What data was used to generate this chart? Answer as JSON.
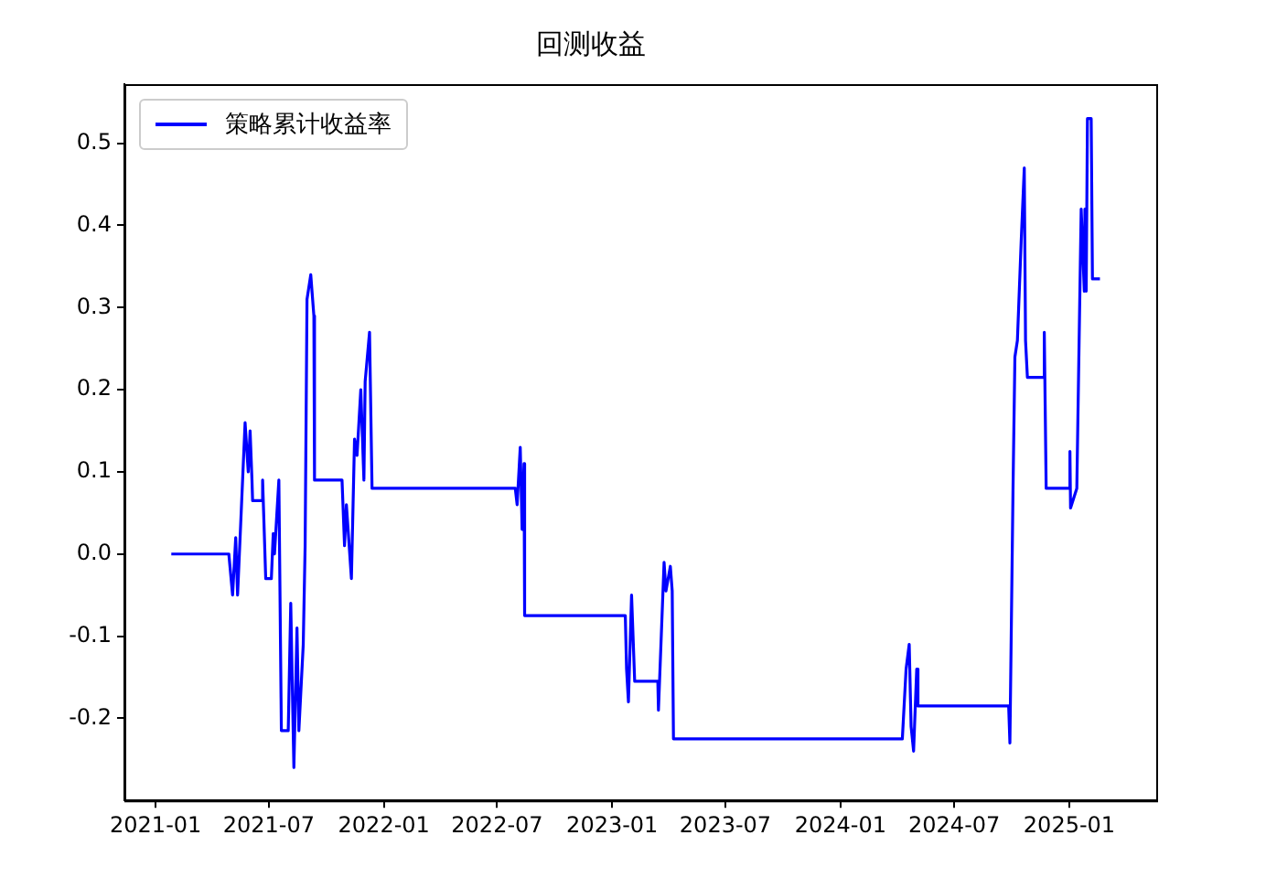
{
  "chart_data": {
    "type": "line",
    "title": "回测收益",
    "legend": "top left",
    "grid": false,
    "marker": "none",
    "line_style": "solid",
    "xlim": [
      "2020-11-12",
      "2025-05-20"
    ],
    "xticks": [
      "2021-01",
      "2021-07",
      "2022-01",
      "2022-07",
      "2023-01",
      "2023-07",
      "2024-01",
      "2024-07",
      "2025-01"
    ],
    "ylim": [
      -0.3,
      0.572
    ],
    "yticks": [
      -0.2,
      -0.1,
      {
        "value": 0,
        "label": "0.0"
      },
      0.1,
      0.2,
      0.3,
      0.4,
      0.5
    ],
    "series": [
      {
        "name": "策略累计收益率",
        "color": "#0000ff",
        "x": [
          "2021-01-26",
          "2021-04-28",
          "2021-05-04",
          "2021-05-09",
          "2021-05-12",
          "2021-05-24",
          "2021-05-29",
          "2021-06-01",
          "2021-06-04",
          "2021-06-05",
          "2021-06-20",
          "2021-06-21",
          "2021-06-26",
          "2021-07-05",
          "2021-07-08",
          "2021-07-10",
          "2021-07-17",
          "2021-07-21",
          "2021-08-01",
          "2021-08-05",
          "2021-08-10",
          "2021-08-15",
          "2021-08-18",
          "2021-08-25",
          "2021-08-28",
          "2021-08-31",
          "2021-09-06",
          "2021-09-11",
          "2021-09-12",
          "2021-10-26",
          "2021-10-30",
          "2021-11-02",
          "2021-11-10",
          "2021-11-15",
          "2021-11-19",
          "2021-11-25",
          "2021-11-30",
          "2021-12-02",
          "2021-12-09",
          "2021-12-13",
          "2022-07-30",
          "2022-08-02",
          "2022-08-07",
          "2022-08-10",
          "2022-08-13",
          "2022-08-14",
          "2023-01-22",
          "2023-01-24",
          "2023-01-27",
          "2023-02-01",
          "2023-02-06",
          "2023-03-15",
          "2023-03-16",
          "2023-03-25",
          "2023-03-28",
          "2023-04-04",
          "2023-04-07",
          "2023-04-09",
          "2024-04-09",
          "2024-04-15",
          "2024-04-20",
          "2024-04-23",
          "2024-04-27",
          "2024-05-02",
          "2024-05-04",
          "2024-09-26",
          "2024-09-28",
          "2024-10-03",
          "2024-10-06",
          "2024-10-10",
          "2024-10-16",
          "2024-10-21",
          "2024-10-23",
          "2024-10-26",
          "2024-11-20",
          "2024-11-22",
          "2024-11-25",
          "2024-12-31",
          "2025-01-02",
          "2025-01-03",
          "2025-01-13",
          "2025-01-20",
          "2025-01-25",
          "2025-01-26",
          "2025-01-28",
          "2025-01-30",
          "2025-02-05",
          "2025-02-07",
          "2025-02-19"
        ],
        "values": [
          0,
          0,
          -0.05,
          0.02,
          -0.05,
          0.16,
          0.1,
          0.15,
          0.09,
          0.065,
          0.065,
          0.09,
          -0.03,
          -0.03,
          0.025,
          0,
          0.09,
          -0.215,
          -0.215,
          -0.06,
          -0.26,
          -0.09,
          -0.215,
          -0.11,
          0.01,
          0.31,
          0.34,
          0.29,
          0.09,
          0.09,
          0.01,
          0.06,
          -0.03,
          0.14,
          0.12,
          0.2,
          0.09,
          0.21,
          0.27,
          0.08,
          0.08,
          0.06,
          0.13,
          0.03,
          0.11,
          -0.075,
          -0.075,
          -0.14,
          -0.18,
          -0.05,
          -0.155,
          -0.155,
          -0.19,
          -0.01,
          -0.045,
          -0.015,
          -0.045,
          -0.225,
          -0.225,
          -0.14,
          -0.11,
          -0.21,
          -0.24,
          -0.14,
          -0.185,
          -0.185,
          -0.23,
          0.08,
          0.24,
          0.26,
          0.38,
          0.47,
          0.26,
          0.215,
          0.215,
          0.27,
          0.08,
          0.08,
          0.125,
          0.056,
          0.08,
          0.42,
          0.32,
          0.42,
          0.32,
          0.53,
          0.53,
          0.335,
          0.335
        ]
      }
    ]
  }
}
